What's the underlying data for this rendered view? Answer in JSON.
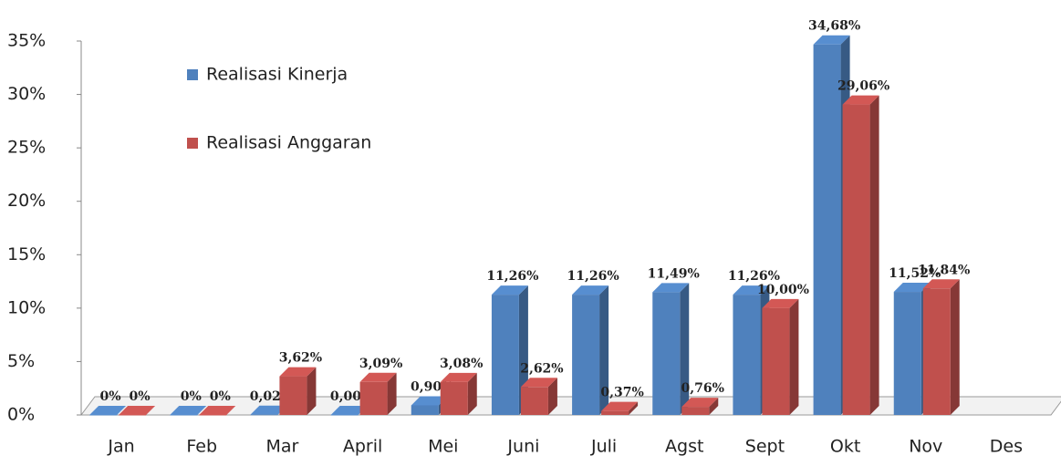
{
  "chart_data": {
    "type": "bar3d",
    "categories": [
      "Jan",
      "Feb",
      "Mar",
      "April",
      "Mei",
      "Juni",
      "Juli",
      "Agst",
      "Sept",
      "Okt",
      "Nov",
      "Des"
    ],
    "series": [
      {
        "name": "Realisasi Kinerja",
        "color": "#4f81bd",
        "values": [
          0,
          0,
          0.02,
          0.0,
          0.9,
          11.26,
          11.26,
          11.49,
          11.26,
          34.68,
          11.52,
          null
        ],
        "value_labels": [
          "0%",
          "0%",
          "0,02%",
          "0,00%",
          "0,90%",
          "11,26%",
          "11,26%",
          "11,49%",
          "11,26%",
          "34,68%",
          "11,52%",
          null
        ]
      },
      {
        "name": "Realisasi Anggaran",
        "color": "#c0504d",
        "values": [
          0,
          0,
          3.62,
          3.09,
          3.08,
          2.62,
          0.37,
          0.76,
          10.0,
          29.06,
          11.84,
          null
        ],
        "value_labels": [
          "0%",
          "0%",
          "3,62%",
          "3,09%",
          "3,08%",
          "2,62%",
          "0,37%",
          "0,76%",
          "10,00%",
          "29,06%",
          "11,84%",
          null
        ]
      }
    ],
    "ylim": [
      0,
      35
    ],
    "yticks": [
      {
        "value": 0,
        "label": "0%"
      },
      {
        "value": 5,
        "label": "5%"
      },
      {
        "value": 10,
        "label": "10%"
      },
      {
        "value": 15,
        "label": "15%"
      },
      {
        "value": 20,
        "label": "20%"
      },
      {
        "value": 25,
        "label": "25%"
      },
      {
        "value": 30,
        "label": "30%"
      },
      {
        "value": 35,
        "label": "35%"
      }
    ],
    "legend": "upper-left"
  }
}
